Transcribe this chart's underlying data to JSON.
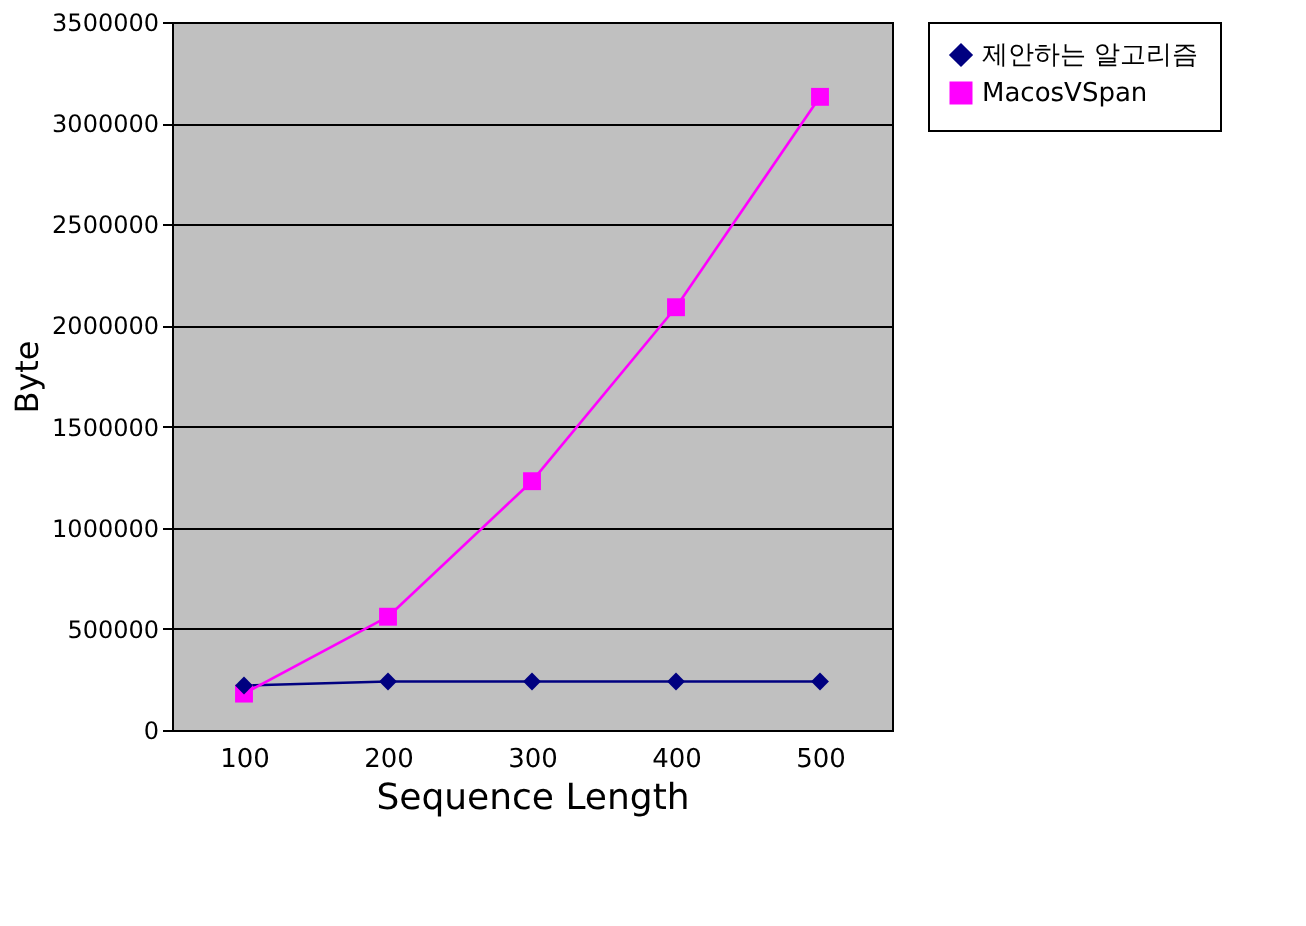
{
  "chart_data": {
    "type": "line",
    "xlabel": "Sequence Length",
    "ylabel": "Byte",
    "categories": [
      "100",
      "200",
      "300",
      "400",
      "500"
    ],
    "series": [
      {
        "name": "제안하는 알고리즘",
        "color": "#000080",
        "marker": "diamond",
        "values": [
          220000,
          240000,
          240000,
          240000,
          240000
        ]
      },
      {
        "name": "MacosVSpan",
        "color": "#ff00ff",
        "marker": "square",
        "values": [
          180000,
          560000,
          1230000,
          2090000,
          3130000
        ]
      }
    ],
    "ylim": [
      0,
      3500000
    ],
    "yticks": [
      0,
      500000,
      1000000,
      1500000,
      2000000,
      2500000,
      3000000,
      3500000
    ],
    "grid": "y",
    "legend": "right"
  }
}
